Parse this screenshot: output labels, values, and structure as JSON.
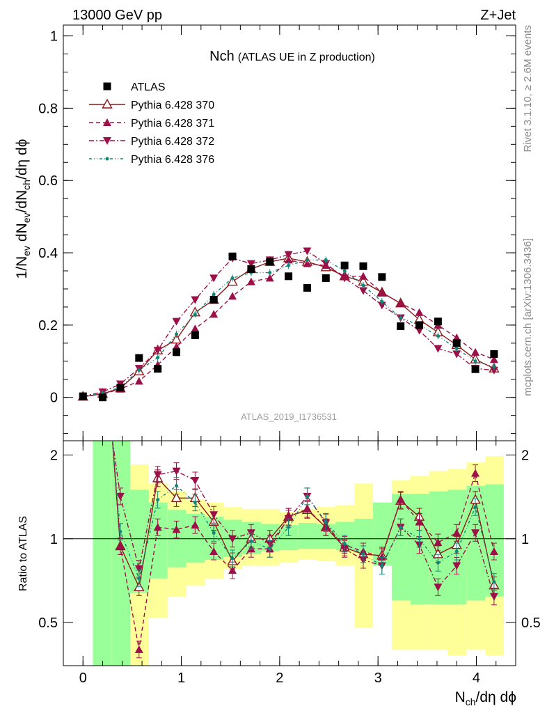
{
  "header": {
    "left": "13000 GeV pp",
    "right": "Z+Jet"
  },
  "side_labels": {
    "rivet": "Rivet 3.1.10, ≥ 2.6M events",
    "mcplots": "mcplots.cern.ch [arXiv:1306.3436]"
  },
  "colors": {
    "data": "#000000",
    "mc": "#9b1048",
    "mc_open": "#8b1a1a",
    "mc376": "#118877",
    "band_green": "#99ff99",
    "band_yellow": "#ffff99"
  },
  "chart_data": [
    {
      "type": "scatter",
      "panel": "main",
      "title": "Nch",
      "subtitle": "(ATLAS UE in Z production)",
      "watermark": "ATLAS_2019_I1736531",
      "xlabel": "N_ch/dη dϕ",
      "ylabel": "1/N_ev dN_ev/dN_ch/dη dϕ",
      "xlim": [
        -0.2,
        4.4
      ],
      "ylim": [
        -0.12,
        1.03
      ],
      "yticks": [
        0,
        0.2,
        0.4,
        0.6,
        0.8,
        1
      ],
      "ytick_labels": [
        "0",
        "0.2",
        "0.4",
        "0.6",
        "0.8",
        "1"
      ],
      "legend_placement": "top-left",
      "x": [
        0.0,
        0.2,
        0.38,
        0.57,
        0.76,
        0.95,
        1.14,
        1.33,
        1.52,
        1.71,
        1.9,
        2.09,
        2.28,
        2.47,
        2.66,
        2.85,
        3.04,
        3.23,
        3.42,
        3.61,
        3.8,
        3.99,
        4.18
      ],
      "series": [
        {
          "name": "ATLAS",
          "marker": "square",
          "values": [
            0.003,
            0.0,
            0.027,
            0.109,
            0.079,
            0.125,
            0.172,
            0.27,
            0.39,
            0.355,
            0.375,
            0.335,
            0.303,
            0.33,
            0.365,
            0.363,
            0.333,
            0.197,
            0.2,
            0.21,
            0.15,
            0.078,
            0.12
          ]
        },
        {
          "name": "Pythia 6.428 370",
          "marker": "open-triangle-up",
          "line": "solid",
          "values": [
            0.002,
            0.01,
            0.025,
            0.072,
            0.13,
            0.16,
            0.235,
            0.27,
            0.32,
            0.355,
            0.375,
            0.385,
            0.375,
            0.36,
            0.335,
            0.32,
            0.29,
            0.26,
            0.215,
            0.18,
            0.145,
            0.105,
            0.08
          ]
        },
        {
          "name": "Pythia 6.428 371",
          "marker": "triangle-up",
          "line": "dashed",
          "values": [
            0.002,
            0.009,
            0.023,
            0.045,
            0.09,
            0.14,
            0.19,
            0.23,
            0.28,
            0.32,
            0.33,
            0.38,
            0.37,
            0.365,
            0.335,
            0.335,
            0.29,
            0.26,
            0.235,
            0.2,
            0.165,
            0.125,
            0.105
          ]
        },
        {
          "name": "Pythia 6.428 372",
          "marker": "triangle-down",
          "line": "dash-dot",
          "values": [
            0.003,
            0.015,
            0.037,
            0.08,
            0.13,
            0.21,
            0.27,
            0.33,
            0.385,
            0.37,
            0.38,
            0.395,
            0.405,
            0.37,
            0.33,
            0.295,
            0.255,
            0.22,
            0.185,
            0.135,
            0.12,
            0.08,
            0.075
          ]
        },
        {
          "name": "Pythia 6.428 376",
          "marker": "dot",
          "line": "dash-dot-dot",
          "values": [
            0.002,
            0.012,
            0.028,
            0.075,
            0.11,
            0.175,
            0.23,
            0.285,
            0.33,
            0.345,
            0.345,
            0.365,
            0.38,
            0.38,
            0.35,
            0.31,
            0.265,
            0.22,
            0.2,
            0.17,
            0.135,
            0.1,
            0.085
          ]
        }
      ]
    },
    {
      "type": "scatter",
      "panel": "ratio",
      "ylabel": "Ratio to ATLAS",
      "xlabel": "N_ch/dη dϕ",
      "xlim": [
        -0.2,
        4.4
      ],
      "ylim": [
        0.35,
        2.25
      ],
      "yticks": [
        0.5,
        1,
        2
      ],
      "ytick_labels": [
        "0.5",
        "1",
        "2"
      ],
      "xticks": [
        0,
        1,
        2,
        3,
        4
      ],
      "xtick_labels": [
        "0",
        "1",
        "2",
        "3",
        "4"
      ],
      "reference_line": 1,
      "band_edges": [
        0.1,
        0.29,
        0.48,
        0.67,
        0.86,
        1.05,
        1.24,
        1.43,
        1.62,
        1.81,
        2.0,
        2.19,
        2.38,
        2.57,
        2.76,
        2.95,
        3.14,
        3.33,
        3.52,
        3.71,
        3.9,
        4.09,
        4.28
      ],
      "bands": {
        "green_lo": [
          0.35,
          0.35,
          0.64,
          0.72,
          0.79,
          0.82,
          0.84,
          0.86,
          0.88,
          0.9,
          0.91,
          0.92,
          0.92,
          0.91,
          0.89,
          0.8,
          0.6,
          0.58,
          0.58,
          0.58,
          0.6,
          0.62
        ],
        "green_hi": [
          2.25,
          2.25,
          1.5,
          1.35,
          1.27,
          1.23,
          1.2,
          1.17,
          1.15,
          1.13,
          1.12,
          1.14,
          1.13,
          1.15,
          1.18,
          1.35,
          1.45,
          1.45,
          1.48,
          1.5,
          1.55,
          1.57
        ],
        "yellow_lo": [
          0.35,
          0.35,
          0.35,
          0.52,
          0.62,
          0.68,
          0.72,
          0.78,
          0.8,
          0.8,
          0.82,
          0.84,
          0.83,
          0.8,
          0.48,
          0.82,
          0.4,
          0.4,
          0.4,
          0.38,
          0.4,
          0.38
        ],
        "yellow_hi": [
          2.25,
          2.25,
          1.85,
          1.58,
          1.48,
          1.38,
          1.35,
          1.3,
          1.28,
          1.28,
          1.25,
          1.28,
          1.3,
          1.32,
          1.58,
          1.35,
          1.62,
          1.68,
          1.75,
          1.78,
          1.88,
          1.98
        ]
      },
      "x": [
        0.38,
        0.57,
        0.76,
        0.95,
        1.14,
        1.33,
        1.52,
        1.71,
        1.9,
        2.09,
        2.28,
        2.47,
        2.66,
        2.85,
        3.04,
        3.23,
        3.42,
        3.61,
        3.8,
        3.99,
        4.18
      ],
      "series": [
        {
          "name": "Pythia 6.428 370",
          "values": [
            0.94,
            0.67,
            1.65,
            1.4,
            1.4,
            1.15,
            0.83,
            1.0,
            1.0,
            1.2,
            1.27,
            1.1,
            0.93,
            0.88,
            0.87,
            1.37,
            1.2,
            0.88,
            0.95,
            1.38,
            0.68
          ]
        },
        {
          "name": "Pythia 6.428 371",
          "values": [
            0.94,
            0.4,
            1.1,
            1.08,
            1.12,
            0.9,
            0.77,
            0.92,
            0.92,
            1.2,
            1.28,
            1.1,
            0.95,
            0.9,
            0.86,
            1.38,
            1.15,
            0.97,
            1.05,
            1.72,
            0.9
          ]
        },
        {
          "name": "Pythia 6.428 372",
          "values": [
            1.42,
            0.78,
            1.7,
            1.75,
            1.62,
            1.22,
            1.0,
            1.05,
            0.96,
            1.18,
            1.42,
            1.14,
            0.92,
            0.84,
            0.8,
            1.1,
            0.95,
            0.67,
            0.8,
            1.05,
            0.62
          ]
        },
        {
          "name": "Pythia 6.428 376",
          "values": [
            1.06,
            0.72,
            1.38,
            1.55,
            1.35,
            1.05,
            0.85,
            0.98,
            0.92,
            1.1,
            1.42,
            1.15,
            0.96,
            0.88,
            0.8,
            1.1,
            1.0,
            0.82,
            0.9,
            1.3,
            0.7
          ]
        }
      ]
    }
  ]
}
